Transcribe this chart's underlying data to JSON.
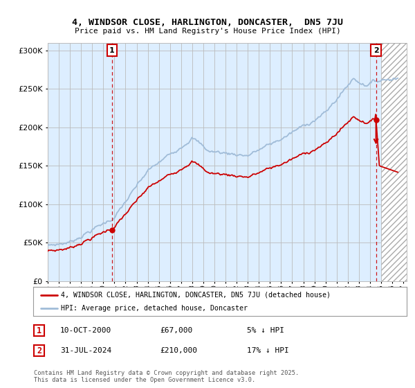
{
  "title": "4, WINDSOR CLOSE, HARLINGTON, DONCASTER,  DN5 7JU",
  "subtitle": "Price paid vs. HM Land Registry's House Price Index (HPI)",
  "legend_line1": "4, WINDSOR CLOSE, HARLINGTON, DONCASTER, DN5 7JU (detached house)",
  "legend_line2": "HPI: Average price, detached house, Doncaster",
  "annotation1_date": "10-OCT-2000",
  "annotation1_price": "£67,000",
  "annotation1_hpi": "5% ↓ HPI",
  "annotation2_date": "31-JUL-2024",
  "annotation2_price": "£210,000",
  "annotation2_hpi": "17% ↓ HPI",
  "footnote": "Contains HM Land Registry data © Crown copyright and database right 2025.\nThis data is licensed under the Open Government Licence v3.0.",
  "ylim": [
    0,
    310000
  ],
  "xlim_start": 1995.0,
  "xlim_end": 2027.3,
  "hpi_color": "#a0bcd8",
  "price_color": "#cc0000",
  "annotation_box_color": "#cc0000",
  "vline_color": "#cc0000",
  "plot_bg_color": "#ddeeff",
  "background_color": "#ffffff",
  "grid_color": "#bbbbbb",
  "hatch_start": 2025.0,
  "t_buy1": 2000.79,
  "t_buy2": 2024.54,
  "price_buy1": 67000,
  "price_buy2": 210000
}
